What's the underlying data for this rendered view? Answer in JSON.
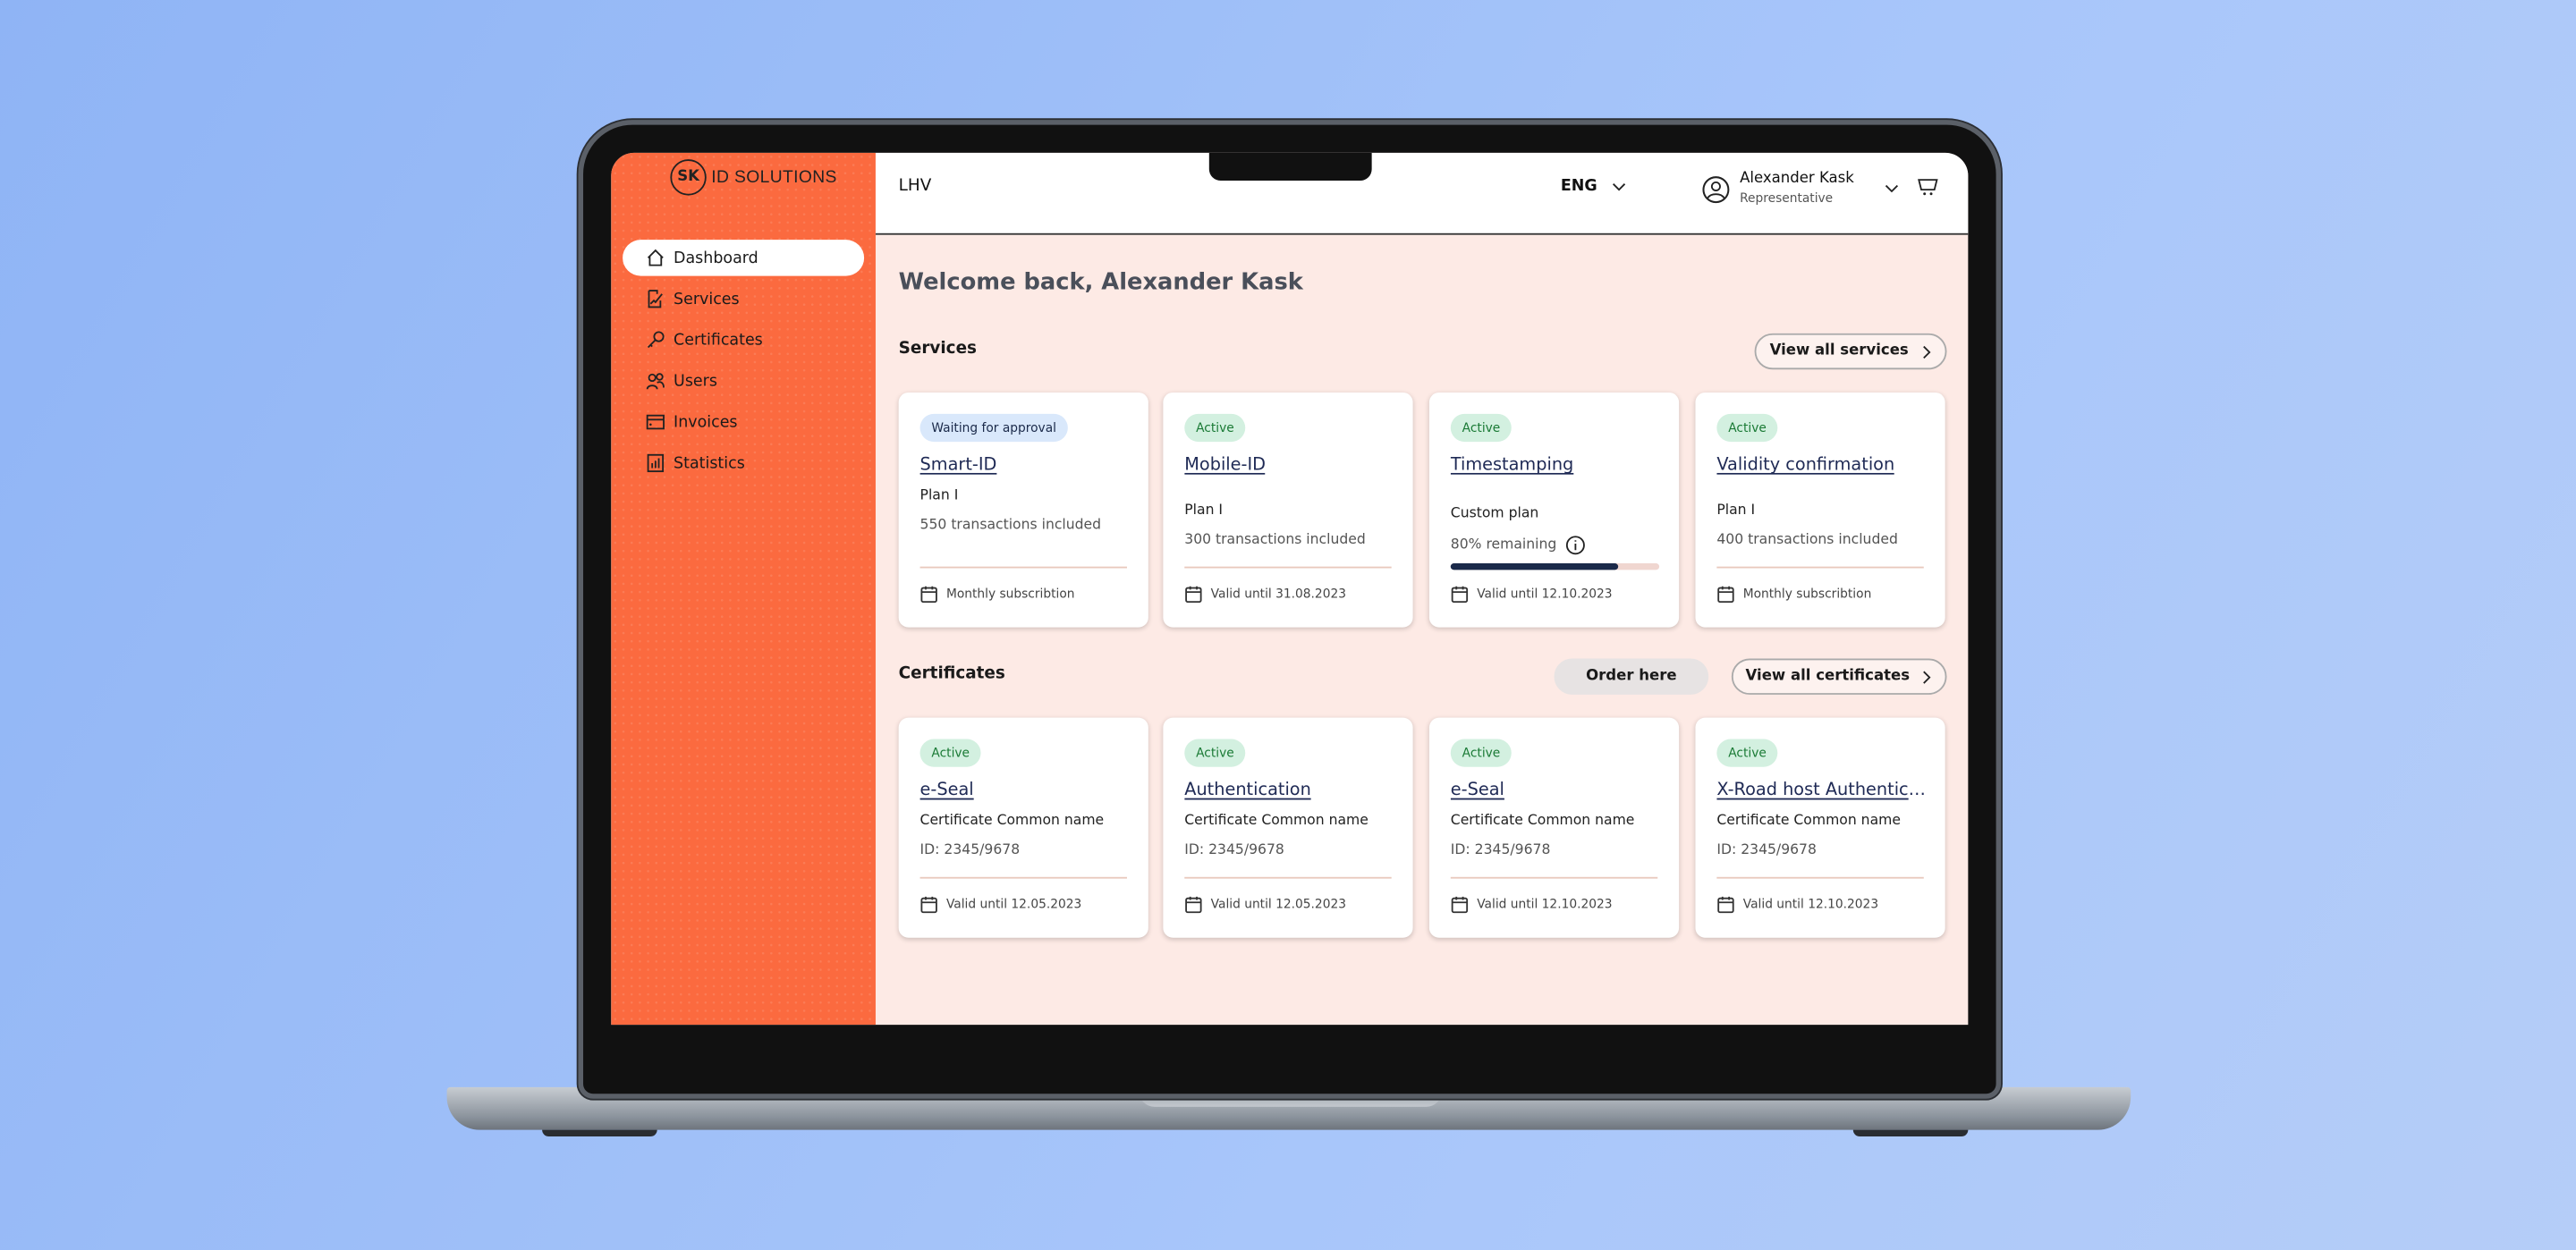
{
  "colors": {
    "sidebar": "#fb6a3f",
    "main_bg": "#fdeae5",
    "active_badge": "#d3f0e0",
    "waiting_badge": "#d9e8fb",
    "progress": "#1b2a4a"
  },
  "logo": {
    "mark": "SK",
    "text": "ID SOLUTIONS"
  },
  "sidebar": {
    "items": [
      {
        "label": "Dashboard",
        "icon": "home-icon",
        "active": true
      },
      {
        "label": "Services",
        "icon": "document-signature-icon"
      },
      {
        "label": "Certificates",
        "icon": "key-icon"
      },
      {
        "label": "Users",
        "icon": "users-icon"
      },
      {
        "label": "Invoices",
        "icon": "card-icon"
      },
      {
        "label": "Statistics",
        "icon": "bar-chart-icon"
      }
    ]
  },
  "header": {
    "org": "LHV",
    "language": "ENG",
    "user_name": "Alexander Kask",
    "user_role": "Representative",
    "cart_icon": "cart-icon"
  },
  "main": {
    "welcome": "Welcome back, Alexander Kask",
    "services": {
      "title": "Services",
      "view_all": "View all services",
      "cards": [
        {
          "badge": "Waiting for approval",
          "status": "waiting",
          "title": "Smart-ID",
          "line1": "Plan I",
          "line2": "550 transactions included",
          "footer": "Monthly subscribtion"
        },
        {
          "badge": "Active",
          "status": "active",
          "title": "Mobile-ID",
          "line1": "Plan I",
          "line2": "300 transactions included",
          "footer": "Valid until 31.08.2023"
        },
        {
          "badge": "Active",
          "status": "active",
          "title": "Timestamping",
          "line1": "Custom plan",
          "line2": "80% remaining",
          "progress": 80,
          "footer": "Valid until 12.10.2023"
        },
        {
          "badge": "Active",
          "status": "active",
          "title": "Validity confirmation",
          "line1": "Plan I",
          "line2": "400 transactions included",
          "footer": "Monthly subscribtion"
        }
      ]
    },
    "certificates": {
      "title": "Certificates",
      "order": "Order here",
      "view_all": "View all certificates",
      "cards": [
        {
          "badge": "Active",
          "title": "e-Seal",
          "line1": "Certificate Common name",
          "line2": "ID: 2345/9678",
          "footer": "Valid until 12.05.2023"
        },
        {
          "badge": "Active",
          "title": "Authentication",
          "line1": "Certificate Common name",
          "line2": "ID: 2345/9678",
          "footer": "Valid until 12.05.2023"
        },
        {
          "badge": "Active",
          "title": "e-Seal",
          "line1": "Certificate Common name",
          "line2": "ID: 2345/9678",
          "footer": "Valid until 12.10.2023"
        },
        {
          "badge": "Active",
          "title": "X-Road host Authentication",
          "line1": "Certificate Common name",
          "line2": "ID: 2345/9678",
          "footer": "Valid until 12.10.2023"
        }
      ]
    }
  }
}
